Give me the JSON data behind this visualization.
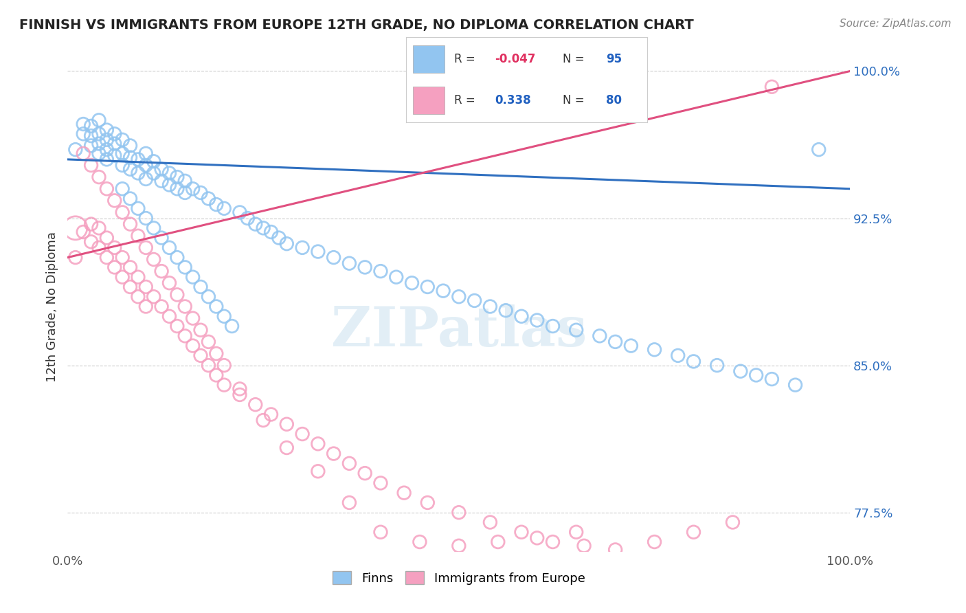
{
  "title": "FINNISH VS IMMIGRANTS FROM EUROPE 12TH GRADE, NO DIPLOMA CORRELATION CHART",
  "source": "Source: ZipAtlas.com",
  "ylabel": "12th Grade, No Diploma",
  "xlim": [
    0.0,
    1.0
  ],
  "ylim": [
    0.755,
    1.005
  ],
  "yticks": [
    0.775,
    0.85,
    0.925,
    1.0
  ],
  "ytick_labels": [
    "77.5%",
    "85.0%",
    "92.5%",
    "100.0%"
  ],
  "xticks": [
    0.0,
    1.0
  ],
  "xtick_labels": [
    "0.0%",
    "100.0%"
  ],
  "legend_R_blue": "-0.047",
  "legend_N_blue": "95",
  "legend_R_pink": "0.338",
  "legend_N_pink": "80",
  "blue_color": "#92c5f0",
  "pink_color": "#f5a0c0",
  "trend_blue": "#3070c0",
  "trend_pink": "#e05080",
  "background_color": "#ffffff",
  "grid_color": "#cccccc",
  "finns_x": [
    0.01,
    0.02,
    0.02,
    0.03,
    0.03,
    0.03,
    0.04,
    0.04,
    0.04,
    0.04,
    0.05,
    0.05,
    0.05,
    0.05,
    0.06,
    0.06,
    0.06,
    0.07,
    0.07,
    0.07,
    0.08,
    0.08,
    0.08,
    0.09,
    0.09,
    0.1,
    0.1,
    0.1,
    0.11,
    0.11,
    0.12,
    0.12,
    0.13,
    0.13,
    0.14,
    0.14,
    0.15,
    0.15,
    0.16,
    0.17,
    0.18,
    0.19,
    0.2,
    0.22,
    0.23,
    0.24,
    0.25,
    0.26,
    0.27,
    0.28,
    0.3,
    0.32,
    0.34,
    0.36,
    0.38,
    0.4,
    0.42,
    0.44,
    0.46,
    0.48,
    0.5,
    0.52,
    0.54,
    0.56,
    0.58,
    0.6,
    0.62,
    0.65,
    0.68,
    0.7,
    0.72,
    0.75,
    0.78,
    0.8,
    0.83,
    0.86,
    0.88,
    0.9,
    0.93,
    0.96,
    0.07,
    0.08,
    0.09,
    0.1,
    0.11,
    0.12,
    0.13,
    0.14,
    0.15,
    0.16,
    0.17,
    0.18,
    0.19,
    0.2,
    0.21
  ],
  "finns_y": [
    0.96,
    0.968,
    0.973,
    0.962,
    0.967,
    0.972,
    0.958,
    0.963,
    0.968,
    0.975,
    0.955,
    0.96,
    0.965,
    0.97,
    0.957,
    0.963,
    0.968,
    0.952,
    0.958,
    0.965,
    0.95,
    0.956,
    0.962,
    0.948,
    0.955,
    0.945,
    0.952,
    0.958,
    0.948,
    0.954,
    0.944,
    0.95,
    0.942,
    0.948,
    0.94,
    0.946,
    0.938,
    0.944,
    0.94,
    0.938,
    0.935,
    0.932,
    0.93,
    0.928,
    0.925,
    0.922,
    0.92,
    0.918,
    0.915,
    0.912,
    0.91,
    0.908,
    0.905,
    0.902,
    0.9,
    0.898,
    0.895,
    0.892,
    0.89,
    0.888,
    0.885,
    0.883,
    0.88,
    0.878,
    0.875,
    0.873,
    0.87,
    0.868,
    0.865,
    0.862,
    0.86,
    0.858,
    0.855,
    0.852,
    0.85,
    0.847,
    0.845,
    0.843,
    0.84,
    0.96,
    0.94,
    0.935,
    0.93,
    0.925,
    0.92,
    0.915,
    0.91,
    0.905,
    0.9,
    0.895,
    0.89,
    0.885,
    0.88,
    0.875,
    0.87
  ],
  "immig_x": [
    0.01,
    0.02,
    0.03,
    0.03,
    0.04,
    0.04,
    0.05,
    0.05,
    0.06,
    0.06,
    0.07,
    0.07,
    0.08,
    0.08,
    0.09,
    0.09,
    0.1,
    0.1,
    0.11,
    0.12,
    0.13,
    0.14,
    0.15,
    0.16,
    0.17,
    0.18,
    0.19,
    0.2,
    0.22,
    0.24,
    0.26,
    0.28,
    0.3,
    0.32,
    0.34,
    0.36,
    0.38,
    0.4,
    0.43,
    0.46,
    0.5,
    0.54,
    0.58,
    0.62,
    0.66,
    0.7,
    0.75,
    0.8,
    0.85,
    0.9,
    0.02,
    0.03,
    0.04,
    0.05,
    0.06,
    0.07,
    0.08,
    0.09,
    0.1,
    0.11,
    0.12,
    0.13,
    0.14,
    0.15,
    0.16,
    0.17,
    0.18,
    0.19,
    0.2,
    0.22,
    0.25,
    0.28,
    0.32,
    0.36,
    0.4,
    0.45,
    0.5,
    0.55,
    0.6,
    0.65
  ],
  "immig_y": [
    0.905,
    0.918,
    0.913,
    0.922,
    0.91,
    0.92,
    0.905,
    0.915,
    0.9,
    0.91,
    0.895,
    0.905,
    0.89,
    0.9,
    0.885,
    0.895,
    0.88,
    0.89,
    0.885,
    0.88,
    0.875,
    0.87,
    0.865,
    0.86,
    0.855,
    0.85,
    0.845,
    0.84,
    0.835,
    0.83,
    0.825,
    0.82,
    0.815,
    0.81,
    0.805,
    0.8,
    0.795,
    0.79,
    0.785,
    0.78,
    0.775,
    0.77,
    0.765,
    0.76,
    0.758,
    0.756,
    0.76,
    0.765,
    0.77,
    0.992,
    0.958,
    0.952,
    0.946,
    0.94,
    0.934,
    0.928,
    0.922,
    0.916,
    0.91,
    0.904,
    0.898,
    0.892,
    0.886,
    0.88,
    0.874,
    0.868,
    0.862,
    0.856,
    0.85,
    0.838,
    0.822,
    0.808,
    0.796,
    0.78,
    0.765,
    0.76,
    0.758,
    0.76,
    0.762,
    0.765
  ],
  "immig_large_x": [
    0.01
  ],
  "immig_large_y": [
    0.92
  ]
}
